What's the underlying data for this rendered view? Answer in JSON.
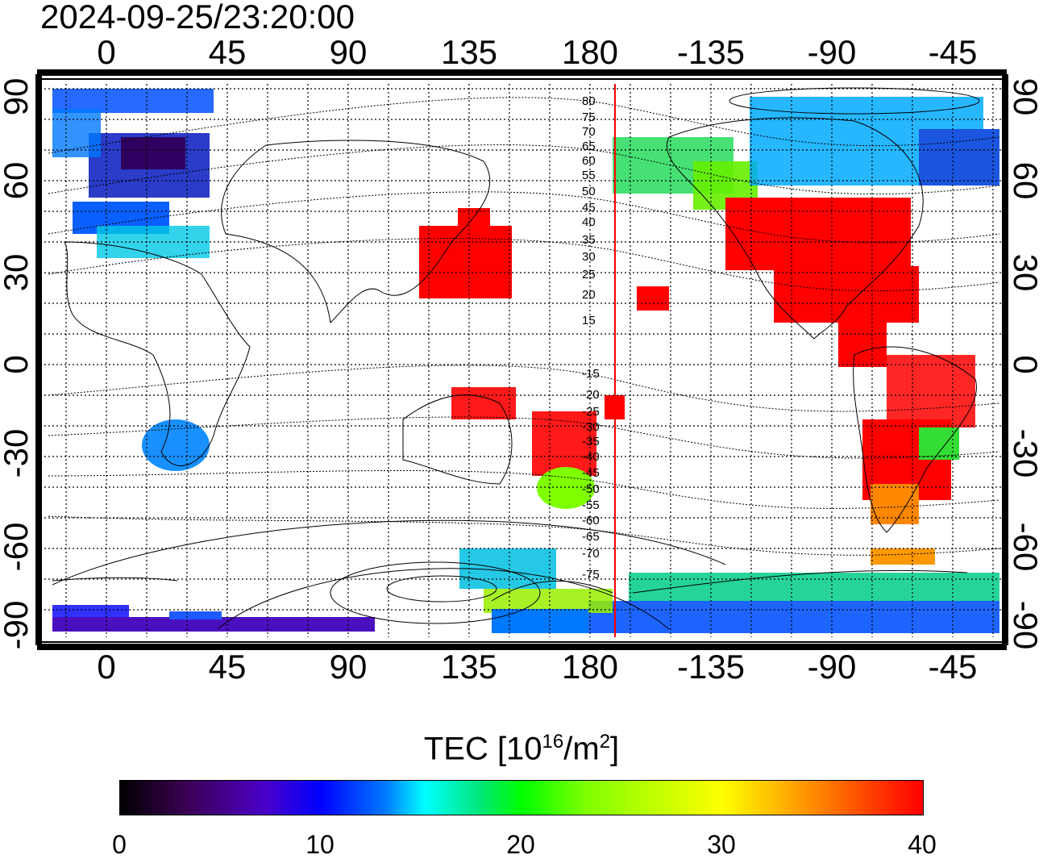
{
  "title": "2024-09-25/23:20:00",
  "lon_ticks": [
    "0",
    "45",
    "90",
    "135",
    "180",
    "-135",
    "-90",
    "-45"
  ],
  "lat_ticks": [
    "90",
    "60",
    "30",
    "0",
    "-30",
    "-60",
    "-90"
  ],
  "contour_labels": [
    "80",
    "75",
    "70",
    "65",
    "60",
    "55",
    "50",
    "45",
    "40",
    "35",
    "30",
    "25",
    "20",
    "15",
    "-15",
    "-20",
    "-25",
    "-30",
    "-35",
    "-40",
    "-45",
    "-50",
    "-55",
    "-60",
    "-65",
    "-70",
    "-75"
  ],
  "colorbar": {
    "label_prefix": "TEC  [10",
    "label_sup1": "16",
    "label_mid": "/m",
    "label_sup2": "2",
    "label_suffix": "]",
    "ticks": [
      "0",
      "10",
      "20",
      "30",
      "40"
    ],
    "min": 0,
    "max": 40
  },
  "colors": {
    "high": "#ff0000",
    "mid": "#00ff00",
    "low": "#0000ff",
    "terminator": "#ff0000"
  }
}
